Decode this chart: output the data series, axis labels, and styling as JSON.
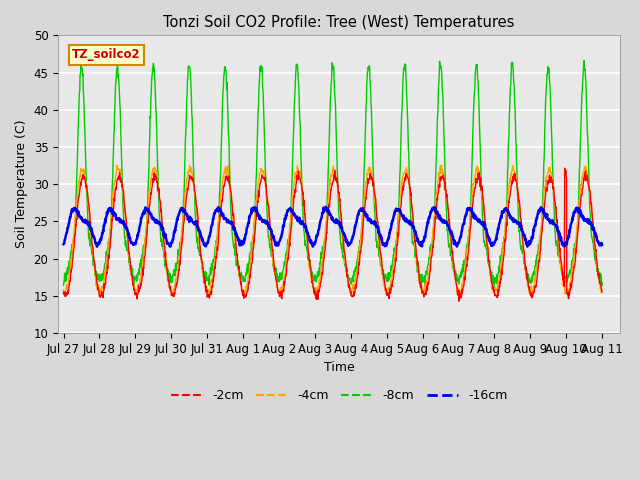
{
  "title": "Tonzi Soil CO2 Profile: Tree (West) Temperatures",
  "xlabel": "Time",
  "ylabel": "Soil Temperature (C)",
  "ylim": [
    10,
    50
  ],
  "series_labels": [
    "-2cm",
    "-4cm",
    "-8cm",
    "-16cm"
  ],
  "series_colors": [
    "#ff0000",
    "#ffa500",
    "#00cc00",
    "#0000ee"
  ],
  "background_color": "#d8d8d8",
  "plot_bg_color": "#e8e8e8",
  "tick_dates": [
    "Jul 27",
    "Jul 28",
    "Jul 29",
    "Jul 30",
    "Jul 31",
    "Aug 1",
    "Aug 2",
    "Aug 3",
    "Aug 4",
    "Aug 5",
    "Aug 6",
    "Aug 7",
    "Aug 8",
    "Aug 9",
    "Aug 10",
    "Aug 11"
  ],
  "legend_label": "TZ_soilco2",
  "legend_box_facecolor": "#ffffcc",
  "legend_box_edgecolor": "#cc8800",
  "legend_text_color": "#cc0000",
  "yticks": [
    10,
    15,
    20,
    25,
    30,
    35,
    40,
    45,
    50
  ],
  "duration_days": 15.5,
  "n_per_day": 100
}
